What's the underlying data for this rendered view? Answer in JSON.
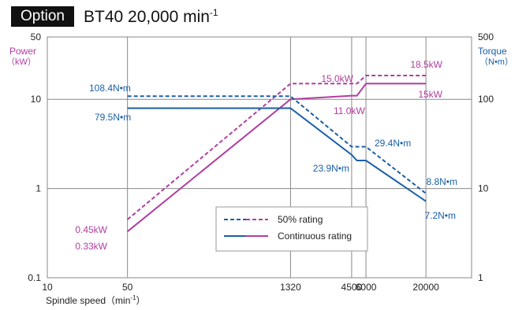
{
  "header": {
    "badge": "Option",
    "title": "BT40 20,000 min",
    "title_sup": "-1"
  },
  "chart_data": {
    "type": "line",
    "x_scale": "log",
    "xlabel": "Spindle speed（min",
    "xlabel_sup": "-1",
    "xlabel_end": "）",
    "xlim": [
      10,
      50000
    ],
    "x_ticks": [
      {
        "value": 10,
        "label": "10"
      },
      {
        "value": 50,
        "label": "50"
      },
      {
        "value": 1320,
        "label": "1320"
      },
      {
        "value": 4500,
        "label": "4500"
      },
      {
        "value": 6000,
        "label": "6000"
      },
      {
        "value": 20000,
        "label": "20000"
      }
    ],
    "y_left": {
      "scale": "log",
      "ylim": [
        0.1,
        50
      ],
      "label_line1": "Power",
      "label_line2": "（kW）",
      "ticks": [
        {
          "value": 50,
          "label": "50"
        },
        {
          "value": 10,
          "label": "10"
        },
        {
          "value": 1,
          "label": "1"
        },
        {
          "value": 0.1,
          "label": "0.1"
        }
      ]
    },
    "y_right": {
      "scale": "log",
      "ylim": [
        1,
        500
      ],
      "label_line1": "Torque",
      "label_line2": "（N•m）",
      "ticks": [
        {
          "value": 500,
          "label": "500"
        },
        {
          "value": 100,
          "label": "100"
        },
        {
          "value": 10,
          "label": "10"
        },
        {
          "value": 1,
          "label": "1"
        }
      ]
    },
    "grid": true,
    "series": [
      {
        "name": "50% rating",
        "quantity": "power",
        "color": "#b03ea0",
        "dashed": true,
        "x": [
          50,
          1320,
          4500,
          5000,
          6000,
          20000
        ],
        "y": [
          0.45,
          15.0,
          15.0,
          15.0,
          18.5,
          18.5
        ]
      },
      {
        "name": "Continuous rating",
        "quantity": "power",
        "color": "#b03ea0",
        "dashed": false,
        "x": [
          50,
          1320,
          4500,
          5000,
          6000,
          20000
        ],
        "y": [
          0.33,
          10.0,
          11.0,
          11.0,
          15.0,
          15.0
        ]
      },
      {
        "name": "50% rating",
        "quantity": "torque",
        "color": "#1a5fa8",
        "dashed": true,
        "x": [
          50,
          1320,
          4500,
          5000,
          6000,
          20000
        ],
        "y": [
          108.4,
          108.4,
          29.4,
          29.4,
          29.4,
          8.8
        ]
      },
      {
        "name": "Continuous rating",
        "quantity": "torque",
        "color": "#1a5fa8",
        "dashed": false,
        "x": [
          50,
          1320,
          4500,
          5000,
          6000,
          20000
        ],
        "y": [
          79.5,
          79.5,
          23.9,
          20.6,
          20.6,
          7.2
        ]
      }
    ],
    "annotations": [
      {
        "text": "108.4N•m",
        "color": "#1a5fa8"
      },
      {
        "text": "79.5N•m",
        "color": "#1a5fa8"
      },
      {
        "text": "15.0kW",
        "color": "#b03ea0"
      },
      {
        "text": "18.5kW",
        "color": "#b03ea0"
      },
      {
        "text": "11.0kW",
        "color": "#b03ea0"
      },
      {
        "text": "15kW",
        "color": "#b03ea0"
      },
      {
        "text": "29.4N•m",
        "color": "#1a5fa8"
      },
      {
        "text": "23.9N•m",
        "color": "#1a5fa8"
      },
      {
        "text": "8.8N•m",
        "color": "#1a5fa8"
      },
      {
        "text": "7.2N•m",
        "color": "#1a5fa8"
      },
      {
        "text": "0.45kW",
        "color": "#b03ea0"
      },
      {
        "text": "0.33kW",
        "color": "#b03ea0"
      }
    ],
    "legend": {
      "position": "lower-center",
      "items": [
        {
          "label": "50% rating",
          "dashed": true
        },
        {
          "label": "Continuous rating",
          "dashed": false
        }
      ],
      "colors": [
        "#1a5fa8",
        "#b03ea0"
      ]
    }
  }
}
